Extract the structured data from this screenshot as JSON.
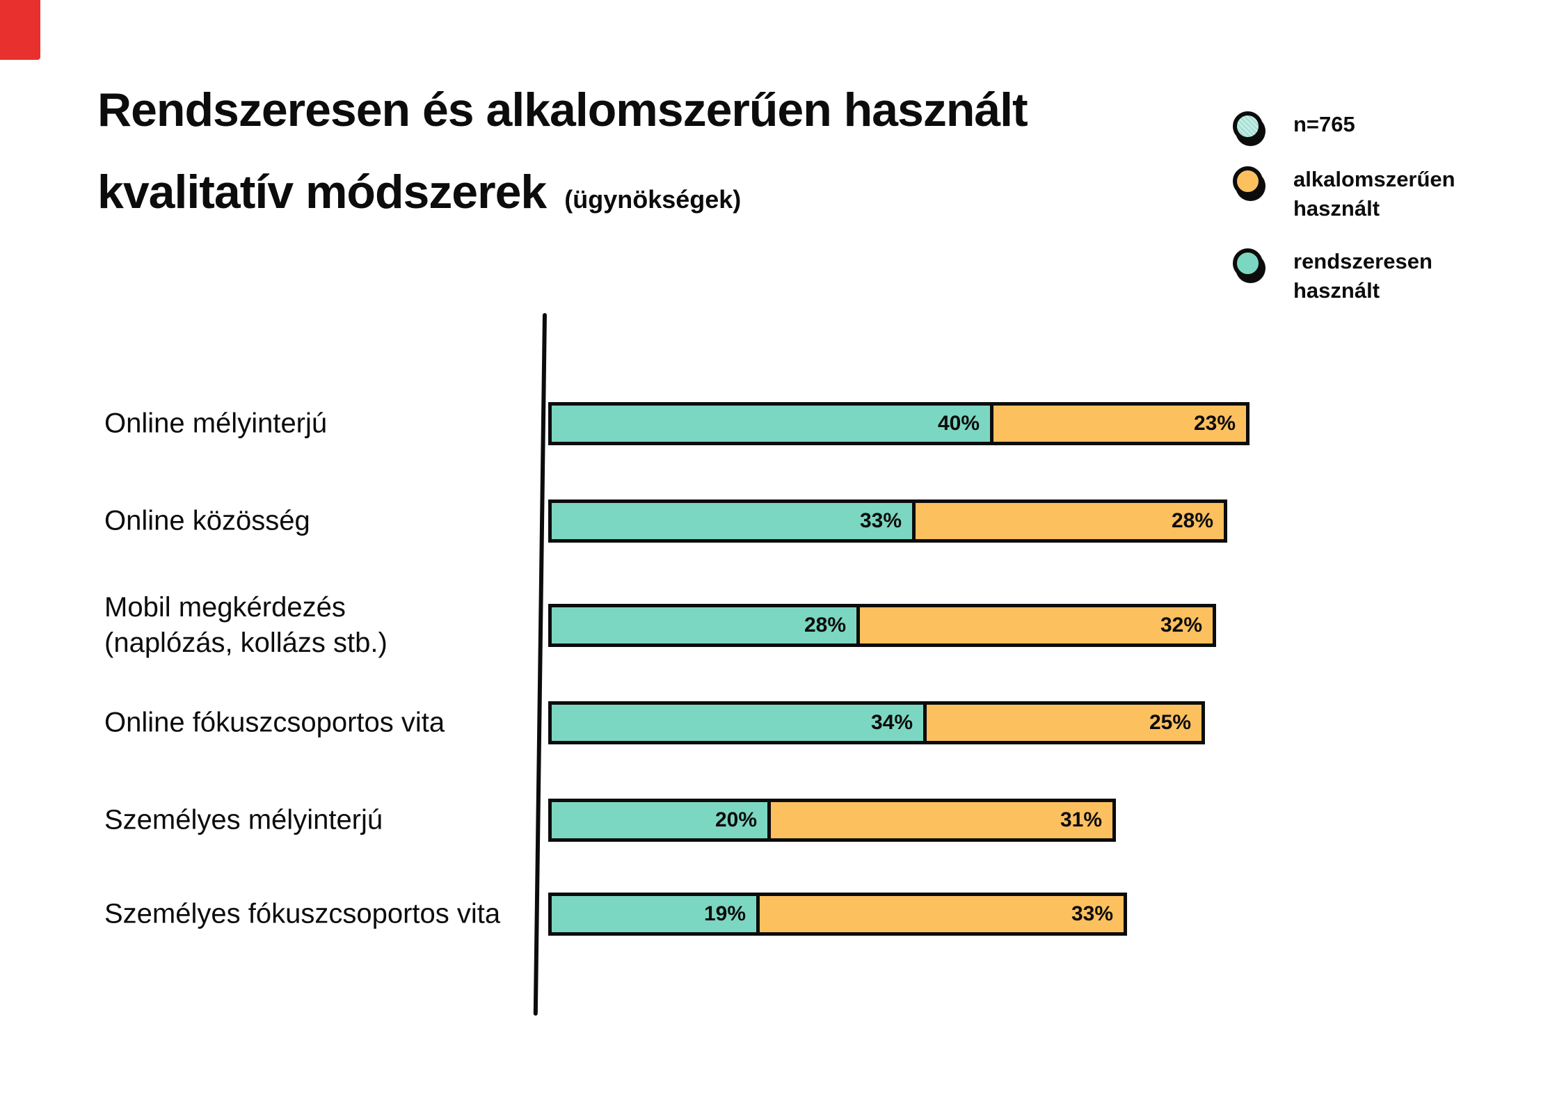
{
  "marker": {
    "color": "#e8312e"
  },
  "title": {
    "line1": "Rendszeresen és alkalomszerűen használt",
    "line2": "kvalitatív módszerek",
    "subtitle": "(ügynökségek)"
  },
  "legend": {
    "items": [
      {
        "label": "n=765",
        "color": "#a5e1d5"
      },
      {
        "label": "alkalomszerűen használt",
        "color": "#fcc05f"
      },
      {
        "label": "rendszeresen használt",
        "color": "#7cd7c2"
      }
    ]
  },
  "chart_data": {
    "type": "bar",
    "orientation": "horizontal",
    "stacked": true,
    "title": "Rendszeresen és alkalomszerűen használt kvalitatív módszerek (ügynökségek)",
    "sample_note": "n=765",
    "categories": [
      "Online mélyinterjú",
      "Online közösség",
      "Mobil megkérdezés\n(naplózás, kollázs stb.)",
      "Online fókuszcsoportos vita",
      "Személyes mélyinterjú",
      "Személyes fókuszcsoportos vita"
    ],
    "series": [
      {
        "name": "rendszeresen használt",
        "color": "#7cd7c2",
        "values": [
          40,
          33,
          28,
          34,
          20,
          19
        ]
      },
      {
        "name": "alkalomszerűen használt",
        "color": "#fcc05f",
        "values": [
          23,
          28,
          32,
          25,
          31,
          33
        ]
      }
    ],
    "value_suffix": "%",
    "xlim": [
      0,
      63
    ],
    "grid": false,
    "legend_position": "top-right"
  }
}
